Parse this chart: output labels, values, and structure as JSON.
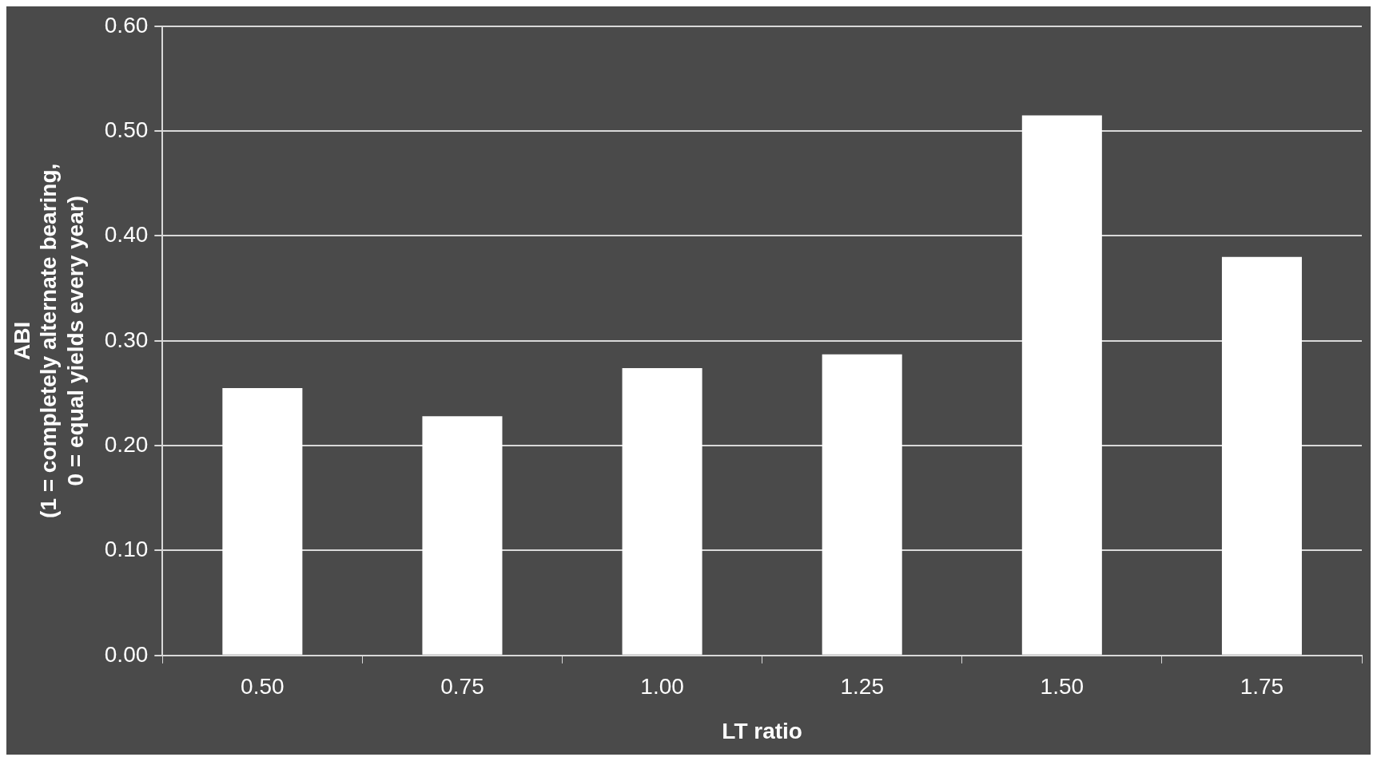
{
  "chart_data": {
    "type": "bar",
    "xlabel": "LT ratio",
    "ylabel": "ABI\n(1 = completely alternate bearing,\n0 = equal yields every year)",
    "categories": [
      "0.50",
      "0.75",
      "1.00",
      "1.25",
      "1.50",
      "1.75"
    ],
    "values": [
      0.255,
      0.228,
      0.274,
      0.287,
      0.515,
      0.38
    ],
    "color": "#ffffff",
    "ylim": [
      0,
      0.6
    ],
    "yticks": [
      {
        "value": 0,
        "label": "0.00"
      },
      {
        "value": 0.1,
        "label": "0.10"
      },
      {
        "value": 0.2,
        "label": "0.20"
      },
      {
        "value": 0.3,
        "label": "0.30"
      },
      {
        "value": 0.4,
        "label": "0.40"
      },
      {
        "value": 0.5,
        "label": "0.50"
      },
      {
        "value": 0.6,
        "label": "0.60"
      }
    ],
    "grid": "y",
    "legend": false
  }
}
